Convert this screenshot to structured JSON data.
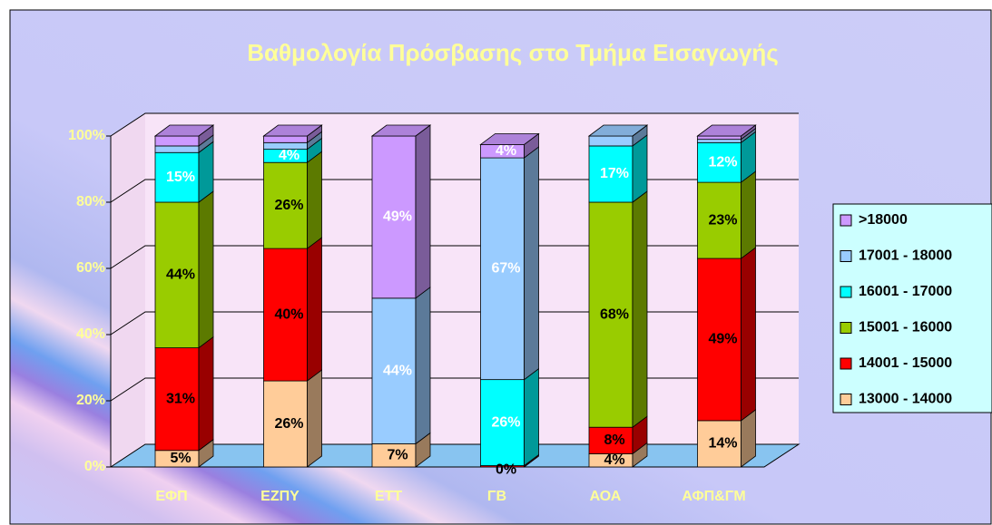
{
  "chart_data": {
    "type": "bar3d_stacked",
    "title": "Βαθμολογία Πρόσβασης στο Τμήμα Εισαγωγής",
    "categories": [
      "ΕΦΠ",
      "ΕΖΠΥ",
      "ΕΤΤ",
      "ΓΒ",
      "ΑΟΑ",
      "ΑΦΠ&ΓΜ"
    ],
    "series": [
      {
        "name": "13000 - 14000",
        "color": "#ffcc99",
        "label_color": "#000000",
        "values": [
          5,
          26,
          7,
          0,
          4,
          14
        ],
        "value_labels": [
          "5%",
          "26%",
          "7%",
          null,
          "4%",
          "14%"
        ]
      },
      {
        "name": "14001 - 15000",
        "color": "#ff0000",
        "label_color": "#000000",
        "values": [
          31,
          40,
          0,
          0.4,
          8,
          49
        ],
        "value_labels": [
          "31%",
          "40%",
          null,
          "0%",
          "8%",
          "49%"
        ]
      },
      {
        "name": "15001 - 16000",
        "color": "#99cc00",
        "label_color": "#000000",
        "values": [
          44,
          26,
          0,
          0,
          68,
          23
        ],
        "value_labels": [
          "44%",
          "26%",
          null,
          null,
          "68%",
          "23%"
        ]
      },
      {
        "name": "16001 - 17000",
        "color": "#00ffff",
        "label_color": "#ffffff",
        "values": [
          15,
          4,
          0,
          26,
          17,
          12
        ],
        "value_labels": [
          "15%",
          "4%",
          null,
          "26%",
          "17%",
          "12%"
        ]
      },
      {
        "name": "17001 - 18000",
        "color": "#99ccff",
        "label_color": "#ffffff",
        "values": [
          2,
          2,
          44,
          67,
          3,
          1
        ],
        "value_labels": [
          null,
          null,
          "44%",
          "67%",
          null,
          null
        ]
      },
      {
        "name": ">18000",
        "color": "#cc99ff",
        "label_color": "#ffffff",
        "values": [
          3,
          2,
          49,
          4,
          0,
          1
        ],
        "value_labels": [
          null,
          null,
          "49%",
          "4%",
          null,
          null
        ]
      }
    ],
    "ylim": [
      0,
      100
    ],
    "yticks": [
      {
        "value": 0,
        "label": "0%"
      },
      {
        "value": 20,
        "label": "20%"
      },
      {
        "value": 40,
        "label": "40%"
      },
      {
        "value": 60,
        "label": "60%"
      },
      {
        "value": 80,
        "label": "80%"
      },
      {
        "value": 100,
        "label": "100%"
      }
    ],
    "grid": true,
    "legend": "right"
  }
}
